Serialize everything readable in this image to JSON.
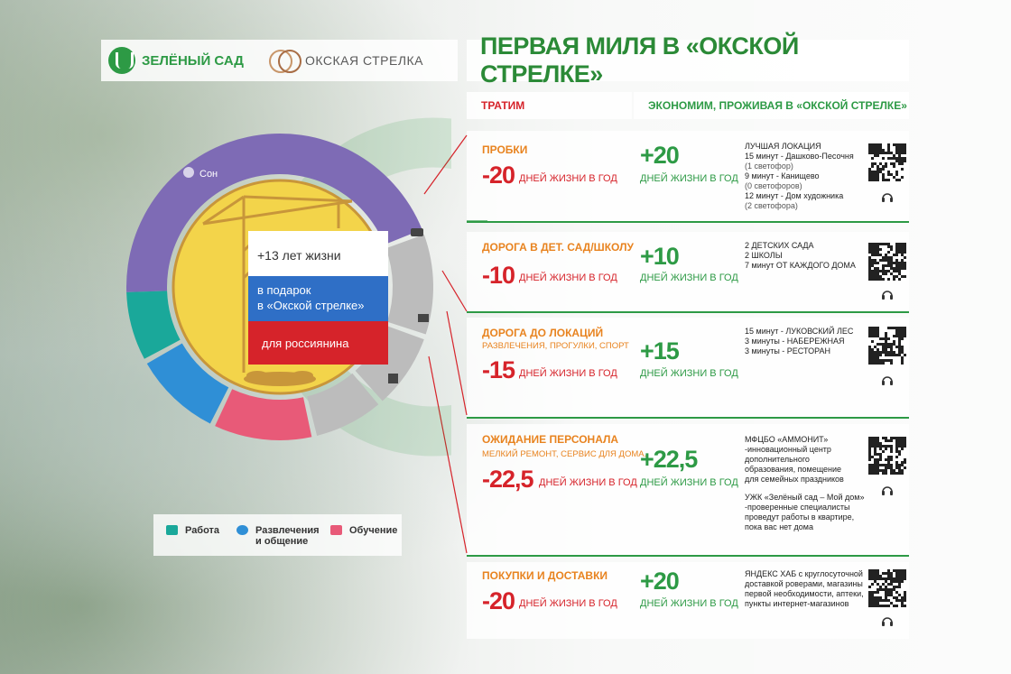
{
  "logos": {
    "brand1": "ЗЕЛЁНЫЙ САД",
    "brand2": "ОКСКАЯ СТРЕЛКА"
  },
  "title": "ПЕРВАЯ МИЛЯ В «ОКСКОЙ СТРЕЛКЕ»",
  "headers": {
    "spend": "ТРАТИМ",
    "save": "ЭКОНОМИМ, ПРОЖИВАЯ В «ОКСКОЙ СТРЕЛКЕ»"
  },
  "rows": [
    {
      "category": "ПРОБКИ",
      "sub": "",
      "neg": "-20",
      "neg_text": "ДНЕЙ ЖИЗНИ В ГОД",
      "pos": "+20",
      "pos_text": "ДНЕЙ ЖИЗНИ В ГОД",
      "info": [
        "ЛУЧШАЯ ЛОКАЦИЯ",
        "15 минут - Дашково-Песочня",
        "(1 светофор)",
        "9 минут - Канищево",
        "(0 светофоров)",
        "12 минут - Дом художника",
        "(2 светофора)"
      ]
    },
    {
      "category": "ДОРОГА В ДЕТ. САД/ШКОЛУ",
      "sub": "",
      "neg": "-10",
      "neg_text": "ДНЕЙ ЖИЗНИ В ГОД",
      "pos": "+10",
      "pos_text": "ДНЕЙ ЖИЗНИ В ГОД",
      "info": [
        "2 ДЕТСКИХ САДА",
        "2 ШКОЛЫ",
        "7 минут ОТ КАЖДОГО ДОМА"
      ]
    },
    {
      "category": "ДОРОГА ДО ЛОКАЦИЙ",
      "sub": "РАЗВЛЕЧЕНИЯ, ПРОГУЛКИ, СПОРТ",
      "neg": "-15",
      "neg_text": "ДНЕЙ ЖИЗНИ В ГОД",
      "pos": "+15",
      "pos_text": "ДНЕЙ ЖИЗНИ В ГОД",
      "info": [
        "15 минут - ЛУКОВСКИЙ ЛЕС",
        "3 минуты - НАБЕРЕЖНАЯ",
        "3 минуты - РЕСТОРАН"
      ]
    },
    {
      "category": "ОЖИДАНИЕ ПЕРСОНАЛА",
      "sub": "МЕЛКИЙ РЕМОНТ, СЕРВИС ДЛЯ ДОМА.",
      "neg": "-22,5",
      "neg_text": "ДНЕЙ ЖИЗНИ В ГОД",
      "pos": "+22,5",
      "pos_text": "ДНЕЙ ЖИЗНИ В ГОД",
      "info": [
        "МФЦБО «АММОНИТ»",
        "-инновационный центр",
        "дополнительного",
        "образования, помещение",
        "для семейных праздников",
        "",
        "УЖК «Зелёный сад – Мой дом»",
        "-проверенные специалисты",
        "проведут работы в квартире,",
        "пока вас нет дома"
      ]
    },
    {
      "category": "ПОКУПКИ И ДОСТАВКИ",
      "sub": "",
      "neg": "-20",
      "neg_text": "ДНЕЙ ЖИЗНИ В ГОД",
      "pos": "+20",
      "pos_text": "ДНЕЙ ЖИЗНИ В ГОД",
      "info": [
        "ЯНДЕКС ХАБ с круглосуточной",
        "доставкой роверами, магазины",
        "первой необходимости, аптеки,",
        "пункты интернет-магазинов"
      ]
    }
  ],
  "donut": {
    "sleep_label": "Сон",
    "center_lines": [
      "+13 лет жизни",
      "в подарок\nв «Окской стрелке»",
      "для россиянина"
    ],
    "colors": {
      "sleep": "#7e6bb5",
      "work": "#1aa89a",
      "fun": "#2f8fd6",
      "study": "#e85a78",
      "grey": "#bcbcbc",
      "yellow": "#f3d44a"
    }
  },
  "legend": [
    {
      "icon": "briefcase-icon",
      "label": "Работа",
      "color": "#1aa89a"
    },
    {
      "icon": "smile-icon",
      "label": "Развлечения\nи общение",
      "color": "#2f8fd6"
    },
    {
      "icon": "book-icon",
      "label": "Обучение",
      "color": "#e85a78"
    }
  ]
}
